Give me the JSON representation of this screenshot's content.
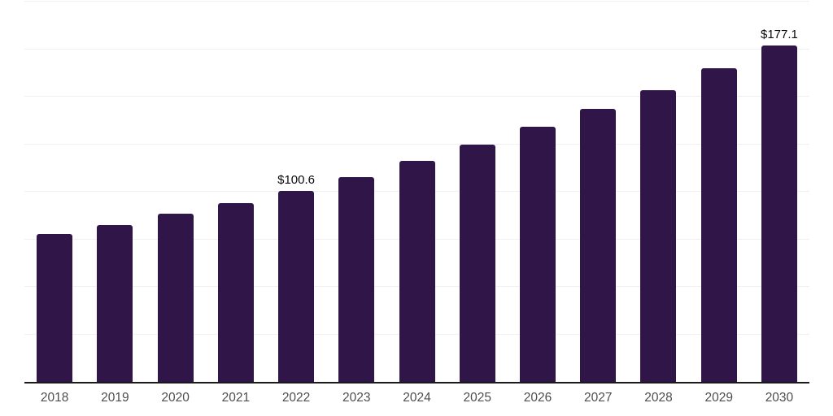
{
  "chart_data": {
    "type": "bar",
    "categories": [
      "2018",
      "2019",
      "2020",
      "2021",
      "2022",
      "2023",
      "2024",
      "2025",
      "2026",
      "2027",
      "2028",
      "2029",
      "2030"
    ],
    "values": [
      77.6,
      82.3,
      88.3,
      94.2,
      100.6,
      107.9,
      116.4,
      124.9,
      134.3,
      143.7,
      153.5,
      165.0,
      177.1
    ],
    "annotations": [
      {
        "category": "2022",
        "text": "$100.6"
      },
      {
        "category": "2030",
        "text": "$177.1"
      }
    ],
    "ylim": [
      0,
      200
    ],
    "grid_step": 25,
    "grid": "horizontal",
    "y_tick_labels": "none",
    "legend": "none",
    "bar_color": "#301549",
    "grid_color": "#f0f0f0",
    "axis_color": "#1a1a1a",
    "tick_label_color": "#4d4d4d",
    "value_label_color": "#0a0a0a",
    "background": "#ffffff"
  }
}
